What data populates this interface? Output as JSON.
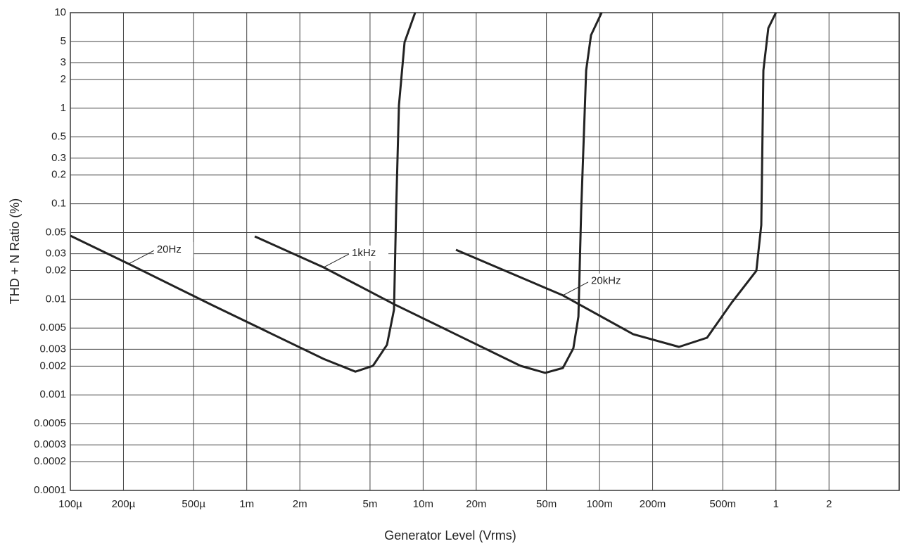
{
  "chart_data": {
    "type": "line",
    "xlabel": "Generator Level (Vrms)",
    "ylabel": "THD + N Ratio (%)",
    "xscale": "log",
    "yscale": "log",
    "grid": true,
    "xlim": [
      0.0001,
      5
    ],
    "ylim": [
      0.0001,
      10
    ],
    "xticks": [
      {
        "value": 0.0001,
        "label": "100µ"
      },
      {
        "value": 0.0002,
        "label": "200µ"
      },
      {
        "value": 0.0005,
        "label": "500µ"
      },
      {
        "value": 0.001,
        "label": "1m"
      },
      {
        "value": 0.002,
        "label": "2m"
      },
      {
        "value": 0.005,
        "label": "5m"
      },
      {
        "value": 0.01,
        "label": "10m"
      },
      {
        "value": 0.02,
        "label": "20m"
      },
      {
        "value": 0.05,
        "label": "50m"
      },
      {
        "value": 0.1,
        "label": "100m"
      },
      {
        "value": 0.2,
        "label": "200m"
      },
      {
        "value": 0.5,
        "label": "500m"
      },
      1,
      2
    ],
    "yticks": [
      10,
      5,
      3,
      2,
      1,
      0.5,
      0.3,
      0.2,
      0.1,
      0.05,
      0.03,
      0.02,
      0.01,
      0.005,
      0.003,
      0.002,
      0.001,
      0.0005,
      0.0003,
      0.0002,
      0.0001
    ],
    "series": [
      {
        "name": "20Hz",
        "color": "#222222",
        "x": [
          0.0001,
          0.000214,
          0.000628,
          0.00273,
          0.00413,
          0.00519,
          0.00624,
          0.00684,
          0.00703,
          0.00729,
          0.00785,
          0.00901
        ],
        "values": [
          0.0463,
          0.0235,
          0.0088,
          0.00238,
          0.00175,
          0.00201,
          0.00334,
          0.0078,
          0.0838,
          1.07,
          4.9,
          10
        ]
      },
      {
        "name": "1kHz",
        "color": "#222222",
        "x": [
          0.00111,
          0.00273,
          0.00684,
          0.0357,
          0.0492,
          0.062,
          0.0711,
          0.0759,
          0.0787,
          0.084,
          0.0895,
          0.1028
        ],
        "values": [
          0.0455,
          0.0216,
          0.0089,
          0.00201,
          0.0017,
          0.00191,
          0.00307,
          0.00659,
          0.0838,
          2.49,
          5.81,
          10
        ]
      },
      {
        "name": "20kHz",
        "color": "#222222",
        "x": [
          0.01535,
          0.062,
          0.155,
          0.282,
          0.407,
          0.561,
          0.775,
          0.826,
          0.849,
          0.906,
          1.0
        ],
        "values": [
          0.033,
          0.011,
          0.00432,
          0.00318,
          0.00396,
          0.0092,
          0.0199,
          0.0597,
          2.49,
          6.89,
          10
        ]
      }
    ]
  }
}
